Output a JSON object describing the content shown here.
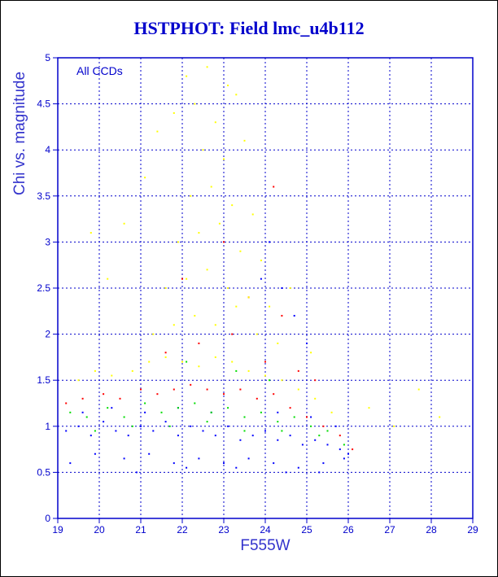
{
  "chart_data": {
    "type": "scatter",
    "title": "HSTPHOT: Field lmc_u4b112",
    "xlabel": "F555W",
    "ylabel": "Chi vs. magnitude",
    "annotation": "All CCDs",
    "xlim": [
      19,
      29
    ],
    "ylim": [
      0,
      5
    ],
    "xticks": [
      "19",
      "20",
      "21",
      "22",
      "23",
      "24",
      "25",
      "26",
      "27",
      "28",
      "29"
    ],
    "yticks": [
      "0",
      "0.5",
      "1",
      "1.5",
      "2",
      "2.5",
      "3",
      "3.5",
      "4",
      "4.5",
      "5"
    ],
    "grid": true,
    "series": [
      {
        "color": "#0000ff",
        "x": [
          19.2,
          19.5,
          19.8,
          20.1,
          20.4,
          20.7,
          21.0,
          21.3,
          21.6,
          21.9,
          22.2,
          22.5,
          22.8,
          23.1,
          23.4,
          23.7,
          24.0,
          24.3,
          24.6,
          24.9,
          25.2,
          25.5,
          25.8,
          26.0,
          19.3,
          19.9,
          20.6,
          21.2,
          21.8,
          22.4,
          23.0,
          23.6,
          24.2,
          24.8,
          25.4,
          25.9,
          19.6,
          20.3,
          21.1,
          21.9,
          22.7,
          23.5,
          24.3,
          25.1,
          25.7,
          20.9,
          22.1,
          23.3,
          24.5,
          25.3,
          24.1,
          24.4,
          24.7,
          23.9,
          25.0
        ],
        "y": [
          0.95,
          1.0,
          0.9,
          1.05,
          0.95,
          0.9,
          1.0,
          0.95,
          1.05,
          0.9,
          1.0,
          0.95,
          0.9,
          1.0,
          0.85,
          0.9,
          0.95,
          0.85,
          0.9,
          0.8,
          0.85,
          0.8,
          0.75,
          0.7,
          0.6,
          0.7,
          0.65,
          0.7,
          0.6,
          0.65,
          0.6,
          0.65,
          0.6,
          0.55,
          0.6,
          0.65,
          1.15,
          1.2,
          1.15,
          1.2,
          1.15,
          1.1,
          1.15,
          1.1,
          1.0,
          0.5,
          0.55,
          0.55,
          0.5,
          0.5,
          3.0,
          2.5,
          2.2,
          2.6,
          1.9
        ]
      },
      {
        "color": "#00dd00",
        "x": [
          19.3,
          19.7,
          20.2,
          20.6,
          21.1,
          21.5,
          21.9,
          22.3,
          22.7,
          23.1,
          23.5,
          23.9,
          24.3,
          24.7,
          25.1,
          25.5,
          25.9,
          19.9,
          20.8,
          21.7,
          22.6,
          23.5,
          24.4,
          25.3,
          22.1,
          23.3,
          24.1
        ],
        "y": [
          1.15,
          1.1,
          1.2,
          1.1,
          1.25,
          1.15,
          1.2,
          1.25,
          1.15,
          1.2,
          1.1,
          1.15,
          1.05,
          1.1,
          1.0,
          0.95,
          0.8,
          0.95,
          1.0,
          1.0,
          1.05,
          0.95,
          0.95,
          0.9,
          1.7,
          1.6,
          1.5
        ]
      },
      {
        "color": "#ff0000",
        "x": [
          19.2,
          19.6,
          20.1,
          20.5,
          21.0,
          21.4,
          21.8,
          22.2,
          22.6,
          23.0,
          23.4,
          23.8,
          24.2,
          24.6,
          25.0,
          25.4,
          25.8,
          26.1,
          21.6,
          22.4,
          23.2,
          24.0,
          24.8,
          22.0,
          23.6,
          24.4,
          25.2,
          23.0,
          24.2
        ],
        "y": [
          1.25,
          1.3,
          1.35,
          1.3,
          1.4,
          1.35,
          1.4,
          1.45,
          1.4,
          1.35,
          1.4,
          1.3,
          1.35,
          1.2,
          1.1,
          1.0,
          0.9,
          0.75,
          1.8,
          1.9,
          2.0,
          1.7,
          1.6,
          2.6,
          2.4,
          2.2,
          1.5,
          3.0,
          3.6
        ]
      },
      {
        "color": "#ffff00",
        "x": [
          19.5,
          19.9,
          20.3,
          20.8,
          21.2,
          21.6,
          22.0,
          22.4,
          22.8,
          23.2,
          23.6,
          24.0,
          24.4,
          24.8,
          25.2,
          25.6,
          21.3,
          21.8,
          22.3,
          22.8,
          23.3,
          23.8,
          24.3,
          21.6,
          22.1,
          22.6,
          23.1,
          23.6,
          24.1,
          21.9,
          22.4,
          22.9,
          23.4,
          23.9,
          22.2,
          22.7,
          23.2,
          23.7,
          22.5,
          23.0,
          23.5,
          21.8,
          22.3,
          22.8,
          23.3,
          22.1,
          22.6,
          23.1,
          20.6,
          21.1,
          26.5,
          27.1,
          27.7,
          28.2,
          20.2,
          19.8,
          21.4,
          25.1,
          24.6
        ],
        "y": [
          1.5,
          1.6,
          1.55,
          1.6,
          1.7,
          1.75,
          1.7,
          1.65,
          1.75,
          1.7,
          1.6,
          1.55,
          1.5,
          1.4,
          1.3,
          1.15,
          2.0,
          2.1,
          2.2,
          2.1,
          2.3,
          2.0,
          1.9,
          2.5,
          2.6,
          2.7,
          2.5,
          2.4,
          2.3,
          3.0,
          3.1,
          3.2,
          2.9,
          2.8,
          3.5,
          3.6,
          3.4,
          3.3,
          4.0,
          3.9,
          4.1,
          4.4,
          4.5,
          4.3,
          4.6,
          4.8,
          4.9,
          4.7,
          3.2,
          3.7,
          1.2,
          1.0,
          1.4,
          1.1,
          2.6,
          3.1,
          4.2,
          1.8,
          2.5
        ]
      }
    ]
  }
}
